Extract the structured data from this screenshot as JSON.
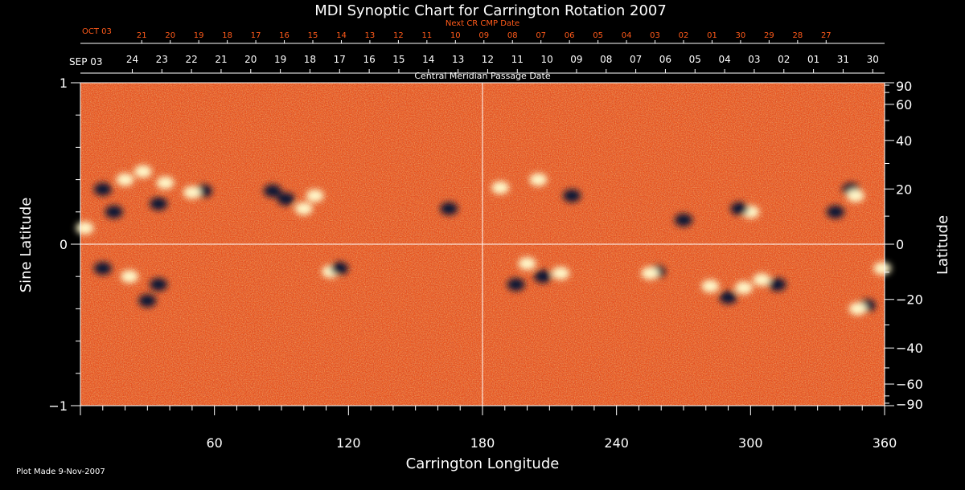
{
  "chart_data": {
    "type": "heatmap",
    "title": "MDI Synoptic Chart for Carrington Rotation 2007",
    "xlabel": "Carrington Longitude",
    "ylabel_left": "Sine Latitude",
    "ylabel_right": "Latitude",
    "xlim": [
      0,
      360
    ],
    "ylim": [
      -1,
      1
    ],
    "x_ticks": [
      "60",
      "120",
      "180",
      "240",
      "300",
      "360"
    ],
    "y_ticks_left": [
      "1",
      "0",
      "−1"
    ],
    "y_ticks_right": [
      "90",
      "60",
      "40",
      "20",
      "0",
      "−20",
      "−40",
      "−60",
      "−90"
    ],
    "y_ticks_right_values": [
      90,
      60,
      40,
      20,
      0,
      -20,
      -40,
      -60,
      -90
    ],
    "cmp_axis_label": "Central Meridian Passage Date",
    "cmp_start_label": "SEP 03",
    "cmp_dates": [
      "24",
      "23",
      "22",
      "21",
      "20",
      "19",
      "18",
      "17",
      "16",
      "15",
      "14",
      "13",
      "12",
      "11",
      "10",
      "09",
      "08",
      "07",
      "06",
      "05",
      "04",
      "03",
      "02",
      "01",
      "31",
      "30"
    ],
    "next_cr_label": "Next CR CMP Date",
    "next_cr_start_label": "OCT 03",
    "next_cr_dates": [
      "21",
      "20",
      "19",
      "18",
      "17",
      "16",
      "15",
      "14",
      "13",
      "12",
      "11",
      "10",
      "09",
      "08",
      "07",
      "06",
      "05",
      "04",
      "03",
      "02",
      "01",
      "30",
      "29",
      "28",
      "27"
    ],
    "colormap": {
      "background": "#e8501a",
      "positive": "#fff6c8",
      "negative": "#101236"
    },
    "active_regions": [
      {
        "lon": 20,
        "sinlat": 0.4,
        "polarity": "positive"
      },
      {
        "lon": 28,
        "sinlat": 0.45,
        "polarity": "positive"
      },
      {
        "lon": 38,
        "sinlat": 0.38,
        "polarity": "positive"
      },
      {
        "lon": 10,
        "sinlat": 0.34,
        "polarity": "negative"
      },
      {
        "lon": 15,
        "sinlat": 0.2,
        "polarity": "negative"
      },
      {
        "lon": 35,
        "sinlat": 0.25,
        "polarity": "negative"
      },
      {
        "lon": 2,
        "sinlat": 0.1,
        "polarity": "positive"
      },
      {
        "lon": 55,
        "sinlat": 0.33,
        "polarity": "negative"
      },
      {
        "lon": 50,
        "sinlat": 0.32,
        "polarity": "positive"
      },
      {
        "lon": 92,
        "sinlat": 0.28,
        "polarity": "negative"
      },
      {
        "lon": 86,
        "sinlat": 0.33,
        "polarity": "negative"
      },
      {
        "lon": 100,
        "sinlat": 0.22,
        "polarity": "positive"
      },
      {
        "lon": 105,
        "sinlat": 0.3,
        "polarity": "positive"
      },
      {
        "lon": 10,
        "sinlat": -0.15,
        "polarity": "negative"
      },
      {
        "lon": 22,
        "sinlat": -0.2,
        "polarity": "positive"
      },
      {
        "lon": 35,
        "sinlat": -0.25,
        "polarity": "negative"
      },
      {
        "lon": 30,
        "sinlat": -0.35,
        "polarity": "negative"
      },
      {
        "lon": 112,
        "sinlat": -0.17,
        "polarity": "positive"
      },
      {
        "lon": 116,
        "sinlat": -0.15,
        "polarity": "negative"
      },
      {
        "lon": 200,
        "sinlat": -0.12,
        "polarity": "positive"
      },
      {
        "lon": 207,
        "sinlat": -0.2,
        "polarity": "negative"
      },
      {
        "lon": 215,
        "sinlat": -0.18,
        "polarity": "positive"
      },
      {
        "lon": 195,
        "sinlat": -0.25,
        "polarity": "negative"
      },
      {
        "lon": 220,
        "sinlat": 0.3,
        "polarity": "negative"
      },
      {
        "lon": 205,
        "sinlat": 0.4,
        "polarity": "positive"
      },
      {
        "lon": 188,
        "sinlat": 0.35,
        "polarity": "positive"
      },
      {
        "lon": 258,
        "sinlat": -0.17,
        "polarity": "negative"
      },
      {
        "lon": 255,
        "sinlat": -0.18,
        "polarity": "positive"
      },
      {
        "lon": 297,
        "sinlat": -0.27,
        "polarity": "positive"
      },
      {
        "lon": 305,
        "sinlat": -0.22,
        "polarity": "positive"
      },
      {
        "lon": 312,
        "sinlat": -0.25,
        "polarity": "negative"
      },
      {
        "lon": 290,
        "sinlat": -0.33,
        "polarity": "negative"
      },
      {
        "lon": 282,
        "sinlat": -0.26,
        "polarity": "positive"
      },
      {
        "lon": 345,
        "sinlat": 0.34,
        "polarity": "negative"
      },
      {
        "lon": 347,
        "sinlat": 0.3,
        "polarity": "positive"
      },
      {
        "lon": 338,
        "sinlat": 0.2,
        "polarity": "negative"
      },
      {
        "lon": 359,
        "sinlat": -0.15,
        "polarity": "positive"
      },
      {
        "lon": 352,
        "sinlat": -0.38,
        "polarity": "negative"
      },
      {
        "lon": 348,
        "sinlat": -0.4,
        "polarity": "positive"
      },
      {
        "lon": 300,
        "sinlat": 0.2,
        "polarity": "positive"
      },
      {
        "lon": 295,
        "sinlat": 0.22,
        "polarity": "negative"
      },
      {
        "lon": 165,
        "sinlat": 0.22,
        "polarity": "negative"
      },
      {
        "lon": 270,
        "sinlat": 0.15,
        "polarity": "negative"
      }
    ]
  },
  "footer": {
    "plot_made": "Plot Made  9-Nov-2007"
  }
}
